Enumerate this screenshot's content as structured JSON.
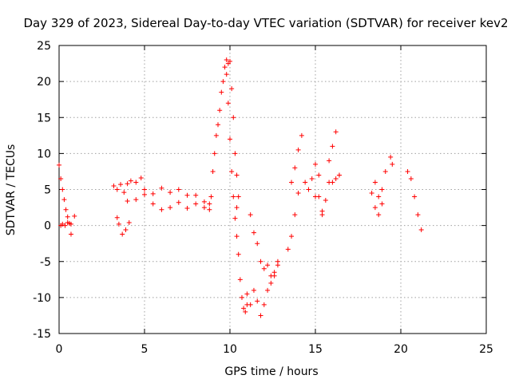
{
  "chart_data": {
    "type": "scatter",
    "title": "Day 329 of 2023, Sidereal Day-to-day VTEC variation (SDTVAR) for receiver kev2",
    "xlabel": "GPS time / hours",
    "ylabel": "SDTVAR / TECUs",
    "xlim": [
      0,
      25
    ],
    "ylim": [
      -15,
      25
    ],
    "xticks": [
      "0",
      "5",
      "10",
      "15",
      "20",
      "25"
    ],
    "yticks": [
      "-15",
      "-10",
      "-5",
      "0",
      "5",
      "10",
      "15",
      "20",
      "25"
    ],
    "grid": true,
    "marker": "+",
    "color": "#ff0000",
    "segments": [
      {
        "x": [
          0.0,
          0.1,
          0.2,
          0.3,
          0.4,
          0.5,
          0.6,
          0.7
        ],
        "y": [
          8.4,
          6.5,
          5.0,
          3.6,
          2.2,
          1.2,
          0.3,
          -1.2
        ]
      },
      {
        "x": [
          0.1,
          0.2,
          0.35,
          0.5,
          0.7,
          0.9
        ],
        "y": [
          0.0,
          0.2,
          0.0,
          0.4,
          0.2,
          1.3
        ]
      },
      {
        "x": [
          3.2,
          3.4,
          3.6,
          3.8,
          4.0,
          4.2,
          4.5,
          4.8,
          5.0,
          5.5,
          6.0,
          6.5,
          7.0,
          7.5,
          8.0,
          8.5,
          8.8
        ],
        "y": [
          5.5,
          5.0,
          5.7,
          4.6,
          5.8,
          6.2,
          6.0,
          6.6,
          5.0,
          4.4,
          5.2,
          4.6,
          5.0,
          4.2,
          4.2,
          3.3,
          3.0
        ]
      },
      {
        "x": [
          4.0,
          4.5,
          5.0,
          5.5,
          6.0,
          6.5,
          7.0,
          7.5,
          8.0,
          8.5
        ],
        "y": [
          3.4,
          3.6,
          4.3,
          3.0,
          2.2,
          2.5,
          3.2,
          2.4,
          3.0,
          2.5
        ]
      },
      {
        "x": [
          3.4,
          3.5,
          3.7,
          3.9,
          4.1
        ],
        "y": [
          1.1,
          0.2,
          -1.2,
          -0.6,
          0.4
        ]
      },
      {
        "x": [
          8.8,
          8.9,
          9.0,
          9.1,
          9.2,
          9.3,
          9.4,
          9.5,
          9.6,
          9.7,
          9.8
        ],
        "y": [
          2.2,
          4.0,
          7.5,
          10.0,
          12.5,
          14.0,
          16.0,
          18.5,
          20.0,
          22.0,
          23.0
        ]
      },
      {
        "x": [
          9.8,
          9.9,
          10.0,
          10.1,
          10.2,
          10.3,
          10.4,
          10.5
        ],
        "y": [
          21.0,
          17.0,
          12.0,
          7.5,
          4.0,
          1.0,
          2.5,
          4.0
        ]
      },
      {
        "x": [
          9.9,
          10.0,
          10.1,
          10.2,
          10.3,
          10.4
        ],
        "y": [
          22.5,
          22.8,
          19.0,
          15.0,
          10.0,
          7.0
        ]
      },
      {
        "x": [
          10.4,
          10.5,
          10.6,
          10.7,
          10.8,
          10.9,
          11.0
        ],
        "y": [
          -1.5,
          -4.0,
          -7.5,
          -10.0,
          -11.5,
          -12.0,
          -11.0
        ]
      },
      {
        "x": [
          11.0,
          11.2,
          11.4,
          11.6,
          11.8,
          12.0,
          12.2,
          12.4,
          12.6,
          12.8
        ],
        "y": [
          -9.5,
          -11.0,
          -9.0,
          -10.5,
          -12.5,
          -11.0,
          -9.0,
          -8.0,
          -7.0,
          -5.5
        ]
      },
      {
        "x": [
          11.2,
          11.4,
          11.6,
          11.8
        ],
        "y": [
          1.5,
          -1.0,
          -2.5,
          -5.0
        ]
      },
      {
        "x": [
          12.0,
          12.2,
          12.4,
          12.6,
          12.8
        ],
        "y": [
          -6.0,
          -5.5,
          -7.0,
          -6.5,
          -5.0
        ]
      },
      {
        "x": [
          13.4,
          13.6,
          13.8,
          14.0
        ],
        "y": [
          -3.3,
          -1.5,
          1.5,
          4.5
        ]
      },
      {
        "x": [
          13.6,
          13.8,
          14.0,
          14.2
        ],
        "y": [
          6.0,
          8.0,
          10.5,
          12.5
        ]
      },
      {
        "x": [
          14.4,
          14.6,
          14.8,
          15.0
        ],
        "y": [
          6.0,
          5.0,
          6.5,
          4.0
        ]
      },
      {
        "x": [
          15.0,
          15.2,
          15.4
        ],
        "y": [
          8.5,
          7.0,
          1.5
        ]
      },
      {
        "x": [
          15.2,
          15.4,
          15.6,
          15.8
        ],
        "y": [
          4.0,
          2.0,
          3.5,
          6.0
        ]
      },
      {
        "x": [
          15.8,
          16.0,
          16.2,
          16.4
        ],
        "y": [
          9.0,
          11.0,
          13.0,
          7.0
        ]
      },
      {
        "x": [
          16.0,
          16.2,
          16.4
        ],
        "y": [
          6.0,
          6.5,
          7.0
        ]
      },
      {
        "x": [
          18.3,
          18.5,
          18.7,
          18.9,
          19.1
        ],
        "y": [
          4.5,
          2.5,
          1.5,
          5.0,
          7.5
        ]
      },
      {
        "x": [
          18.5,
          18.7,
          18.9
        ],
        "y": [
          6.0,
          4.0,
          3.0
        ]
      },
      {
        "x": [
          19.4,
          19.5
        ],
        "y": [
          9.5,
          8.5
        ]
      },
      {
        "x": [
          20.4,
          20.6,
          20.8,
          21.0,
          21.2
        ],
        "y": [
          7.5,
          6.5,
          4.0,
          1.5,
          -0.6
        ]
      }
    ]
  }
}
